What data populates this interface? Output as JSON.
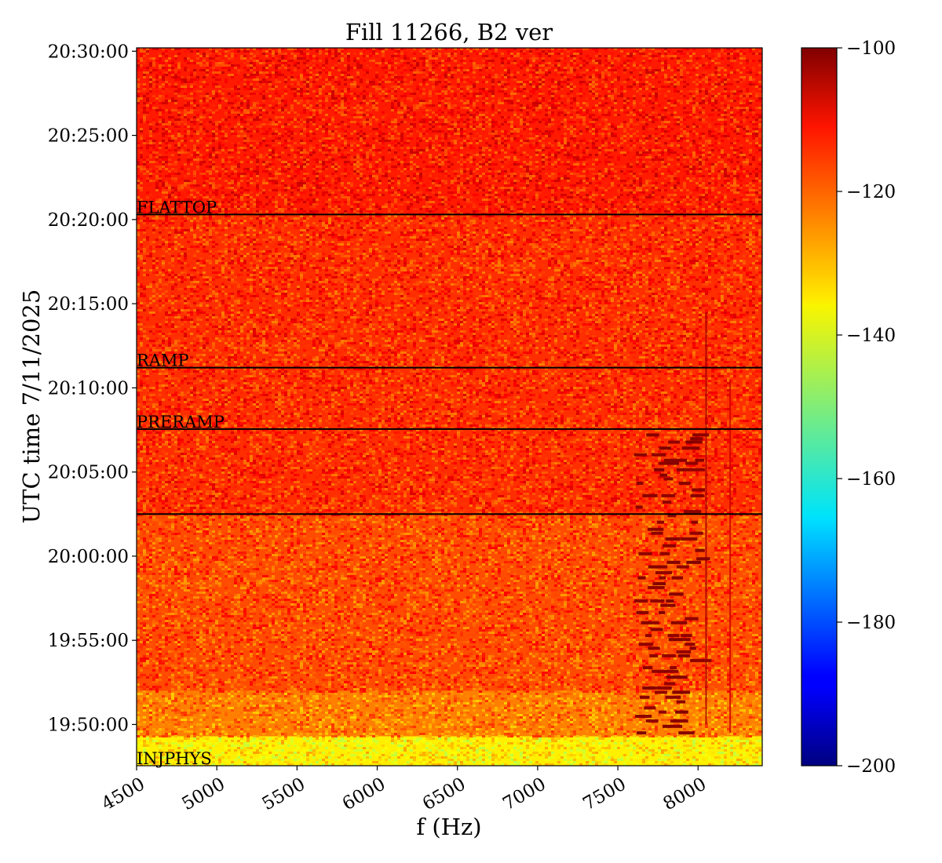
{
  "chart_data": {
    "type": "heatmap",
    "title": "Fill 11266, B2 ver",
    "xlabel": "f (Hz)",
    "ylabel": "UTC time 7/11/2025",
    "x_ticks": [
      "4500",
      "5000",
      "5500",
      "6000",
      "6500",
      "7000",
      "7500",
      "8000"
    ],
    "x_tick_values": [
      4500,
      5000,
      5500,
      6000,
      6500,
      7000,
      7500,
      8000
    ],
    "xlim": [
      4500,
      8400
    ],
    "y_ticks": [
      "19:50:00",
      "19:55:00",
      "20:00:00",
      "20:05:00",
      "20:10:00",
      "20:15:00",
      "20:20:00",
      "20:25:00",
      "20:30:00"
    ],
    "y_tick_minutes": [
      0,
      5,
      10,
      15,
      20,
      25,
      30,
      35,
      40
    ],
    "ylim_minutes": [
      -2.45,
      40.2
    ],
    "ylim_labels": [
      "19:47:33",
      "20:30:12"
    ],
    "colorbar": {
      "colormap": "jet",
      "range": [
        -200,
        -100
      ],
      "ticks": [
        "−100",
        "−120",
        "−140",
        "−160",
        "−180",
        "−200"
      ],
      "tick_values": [
        -100,
        -120,
        -140,
        -160,
        -180,
        -200
      ]
    },
    "phases": [
      {
        "label": "INJPHYS",
        "minute": -2.45,
        "line": false
      },
      {
        "label": "",
        "minute": 12.5,
        "line": true
      },
      {
        "label": "PRERAMP",
        "minute": 17.55,
        "line": true
      },
      {
        "label": "RAMP",
        "minute": 21.2,
        "line": true
      },
      {
        "label": "FLATTOP",
        "minute": 30.3,
        "line": true
      }
    ],
    "intensity_regions": [
      {
        "from_minute": -2.45,
        "to_minute": -0.7,
        "level_db": -136
      },
      {
        "from_minute": -0.7,
        "to_minute": 2.0,
        "level_db": -125
      },
      {
        "from_minute": 2.0,
        "to_minute": 12.5,
        "level_db": -120
      },
      {
        "from_minute": 12.5,
        "to_minute": 30.3,
        "level_db": -117
      },
      {
        "from_minute": 30.3,
        "to_minute": 40.2,
        "level_db": -115
      }
    ],
    "features": [
      {
        "type": "line",
        "x_hz": 8050,
        "from_minute": 0,
        "to_minute": 24.5,
        "level_db": -104
      },
      {
        "type": "line",
        "x_hz": 8200,
        "from_minute": -0.5,
        "to_minute": 20.5,
        "level_db": -108
      },
      {
        "type": "cluster",
        "x_range_hz": [
          7600,
          8070
        ],
        "from_minute": -0.5,
        "to_minute": 17.5,
        "level_db": -102
      }
    ]
  }
}
